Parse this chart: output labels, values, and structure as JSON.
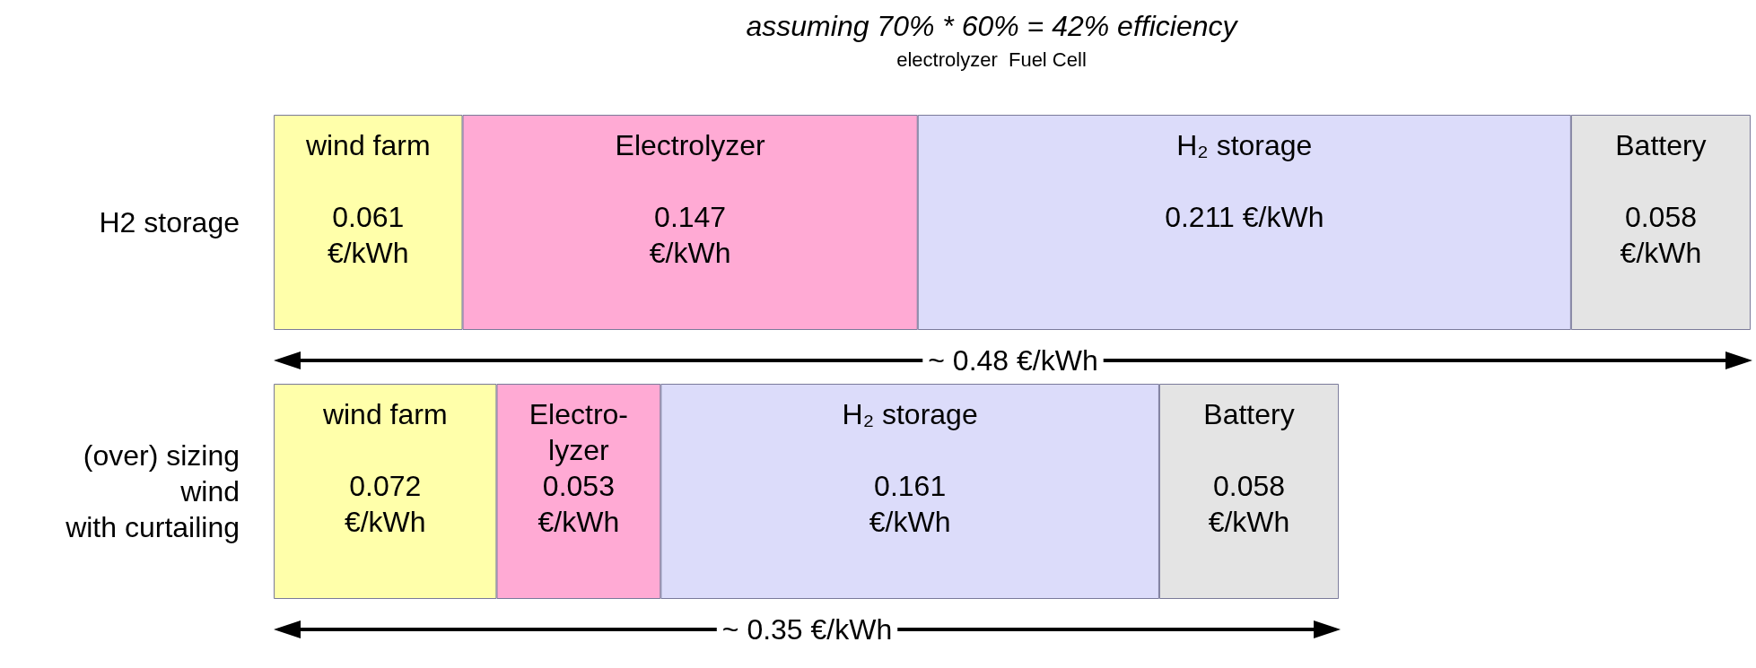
{
  "chart_data": {
    "type": "bar",
    "orientation": "horizontal",
    "stacked": true,
    "title": "assuming 70% * 60% = 42% efficiency",
    "subtitle": "electrolyzer  Fuel Cell",
    "categories": [
      "H2 storage",
      "(over) sizing\nwind\nwith curtailing"
    ],
    "series": [
      {
        "color": "#ffffaa",
        "values": [
          0.061,
          0.072
        ],
        "value_labels": [
          "wind farm\n\n0.061\n€/kWh",
          "wind farm\n\n0.072\n€/kWh"
        ]
      },
      {
        "color": "#ffaad4",
        "values": [
          0.147,
          0.053
        ],
        "value_labels": [
          "Electrolyzer\n\n0.147\n€/kWh",
          "Electro-\nlyzer\n0.053\n€/kWh"
        ]
      },
      {
        "color": "#dcdcfa",
        "values": [
          0.211,
          0.161
        ],
        "value_labels": [
          "H₂ storage\n\n0.211 €/kWh",
          "H₂ storage\n\n0.161\n€/kWh"
        ]
      },
      {
        "color": "#e4e4e4",
        "values": [
          0.058,
          0.058
        ],
        "value_labels": [
          "Battery\n\n0.058\n€/kWh",
          "Battery\n\n0.058\n€/kWh"
        ]
      }
    ],
    "annotations": [
      "~ 0.48 €/kWh",
      "~ 0.35 €/kWh"
    ]
  }
}
